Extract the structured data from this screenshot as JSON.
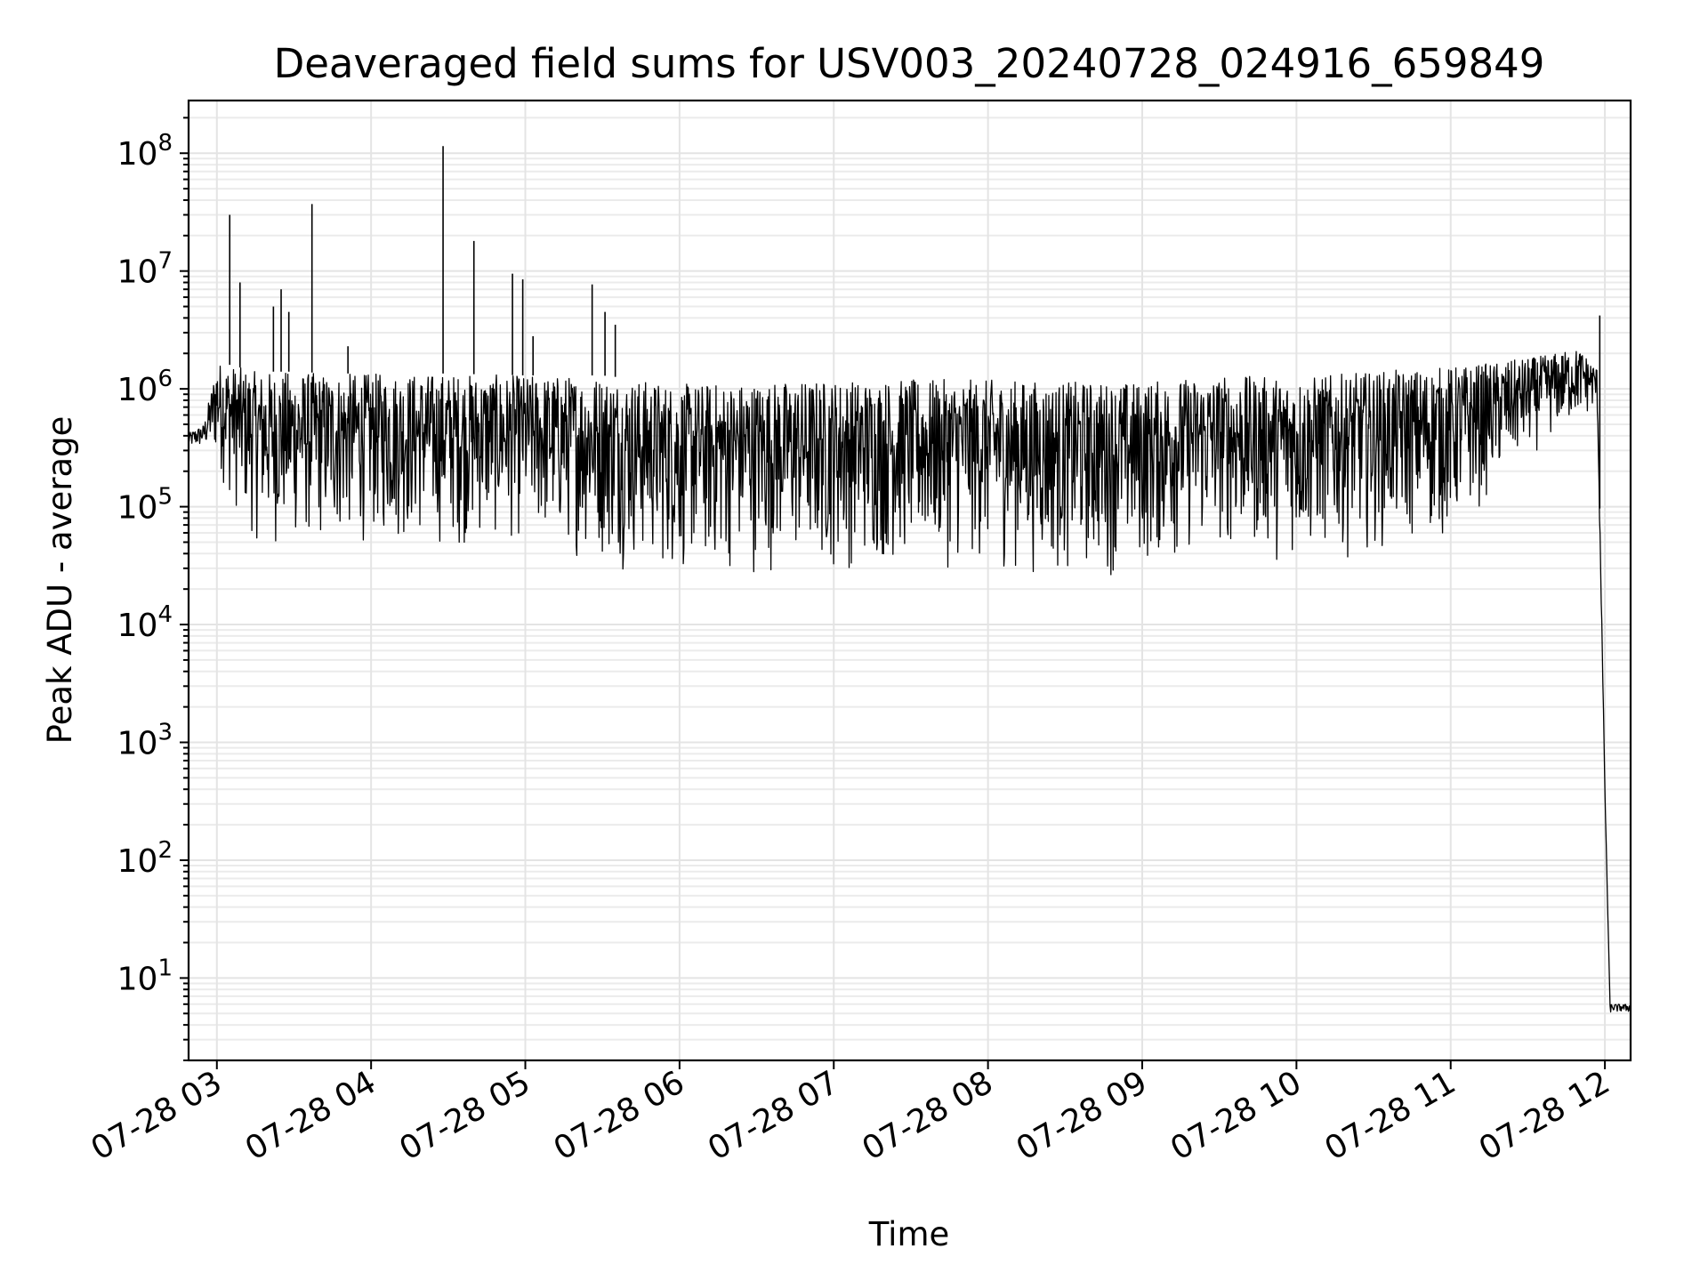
{
  "chart_data": {
    "type": "line",
    "title": "Deaveraged field sums for USV003_20240728_024916_659849",
    "xlabel": "Time",
    "ylabel": "Peak ADU - average",
    "yscale": "log",
    "ylim": [
      2.0,
      280000000
    ],
    "xlim": [
      "2024-07-28 02:49",
      "2024-07-28 12:10"
    ],
    "grid": true,
    "x_tick_labels": [
      "07-28 03",
      "07-28 04",
      "07-28 05",
      "07-28 06",
      "07-28 07",
      "07-28 08",
      "07-28 09",
      "07-28 10",
      "07-28 11",
      "07-28 12"
    ],
    "y_tick_labels": [
      {
        "base": "10",
        "exp": "1"
      },
      {
        "base": "10",
        "exp": "2"
      },
      {
        "base": "10",
        "exp": "3"
      },
      {
        "base": "10",
        "exp": "4"
      },
      {
        "base": "10",
        "exp": "5"
      },
      {
        "base": "10",
        "exp": "6"
      },
      {
        "base": "10",
        "exp": "7"
      },
      {
        "base": "10",
        "exp": "8"
      }
    ],
    "series": [
      {
        "color": "#000000",
        "x": [
          "2024-07-28 02:49",
          "2024-07-28 02:55",
          "2024-07-28 03:00",
          "2024-07-28 03:05",
          "2024-07-28 03:10",
          "2024-07-28 03:15",
          "2024-07-28 03:20",
          "2024-07-28 03:25",
          "2024-07-28 03:30",
          "2024-07-28 03:45",
          "2024-07-28 04:00",
          "2024-07-28 04:30",
          "2024-07-28 05:00",
          "2024-07-28 05:30",
          "2024-07-28 06:00",
          "2024-07-28 06:30",
          "2024-07-28 07:00",
          "2024-07-28 07:30",
          "2024-07-28 08:00",
          "2024-07-28 08:30",
          "2024-07-28 09:00",
          "2024-07-28 09:30",
          "2024-07-28 10:00",
          "2024-07-28 10:30",
          "2024-07-28 11:00",
          "2024-07-28 11:20",
          "2024-07-28 11:35",
          "2024-07-28 11:50",
          "2024-07-28 11:57",
          "2024-07-28 12:00",
          "2024-07-28 12:02",
          "2024-07-28 12:10"
        ],
        "y": [
          350000,
          420000,
          1500000,
          900000,
          600000,
          400000,
          250000,
          150000,
          120000,
          110000,
          120000,
          150000,
          150000,
          80000,
          60000,
          70000,
          80000,
          75000,
          70000,
          60000,
          70000,
          100000,
          90000,
          110000,
          150000,
          300000,
          600000,
          1100000,
          800000,
          400,
          5.5,
          5.5
        ],
        "envelope_low": [
          300000,
          300000,
          200000,
          100000,
          60000,
          45000,
          40000,
          40000,
          40000,
          40000,
          45000,
          40000,
          45000,
          30000,
          22000,
          25000,
          25000,
          28000,
          27000,
          22000,
          25000,
          38000,
          30000,
          40000,
          45000,
          150000,
          300000,
          500000,
          600000,
          400,
          5.0,
          5.0
        ],
        "envelope_high": [
          420000,
          500000,
          1700000,
          1600000,
          1500000,
          1400000,
          1400000,
          1400000,
          1400000,
          1350000,
          1350000,
          1350000,
          1300000,
          1300000,
          1100000,
          1150000,
          1200000,
          1200000,
          1200000,
          1150000,
          1150000,
          1300000,
          1250000,
          1400000,
          1550000,
          1700000,
          1900000,
          2200000,
          1500000,
          400,
          6.0,
          6.0
        ],
        "spikes": [
          {
            "x": "2024-07-28 03:05",
            "y": 30000000
          },
          {
            "x": "2024-07-28 03:09",
            "y": 8000000
          },
          {
            "x": "2024-07-28 03:22",
            "y": 5000000
          },
          {
            "x": "2024-07-28 03:25",
            "y": 7000000
          },
          {
            "x": "2024-07-28 03:28",
            "y": 4500000
          },
          {
            "x": "2024-07-28 03:37",
            "y": 37000000
          },
          {
            "x": "2024-07-28 03:51",
            "y": 2300000
          },
          {
            "x": "2024-07-28 04:28",
            "y": 115000000
          },
          {
            "x": "2024-07-28 04:40",
            "y": 18000000
          },
          {
            "x": "2024-07-28 04:55",
            "y": 9500000
          },
          {
            "x": "2024-07-28 04:59",
            "y": 8500000
          },
          {
            "x": "2024-07-28 05:03",
            "y": 2800000
          },
          {
            "x": "2024-07-28 05:26",
            "y": 7700000
          },
          {
            "x": "2024-07-28 05:31",
            "y": 4500000
          },
          {
            "x": "2024-07-28 05:35",
            "y": 3500000
          },
          {
            "x": "2024-07-28 11:58",
            "y": 4200000
          }
        ]
      }
    ]
  }
}
